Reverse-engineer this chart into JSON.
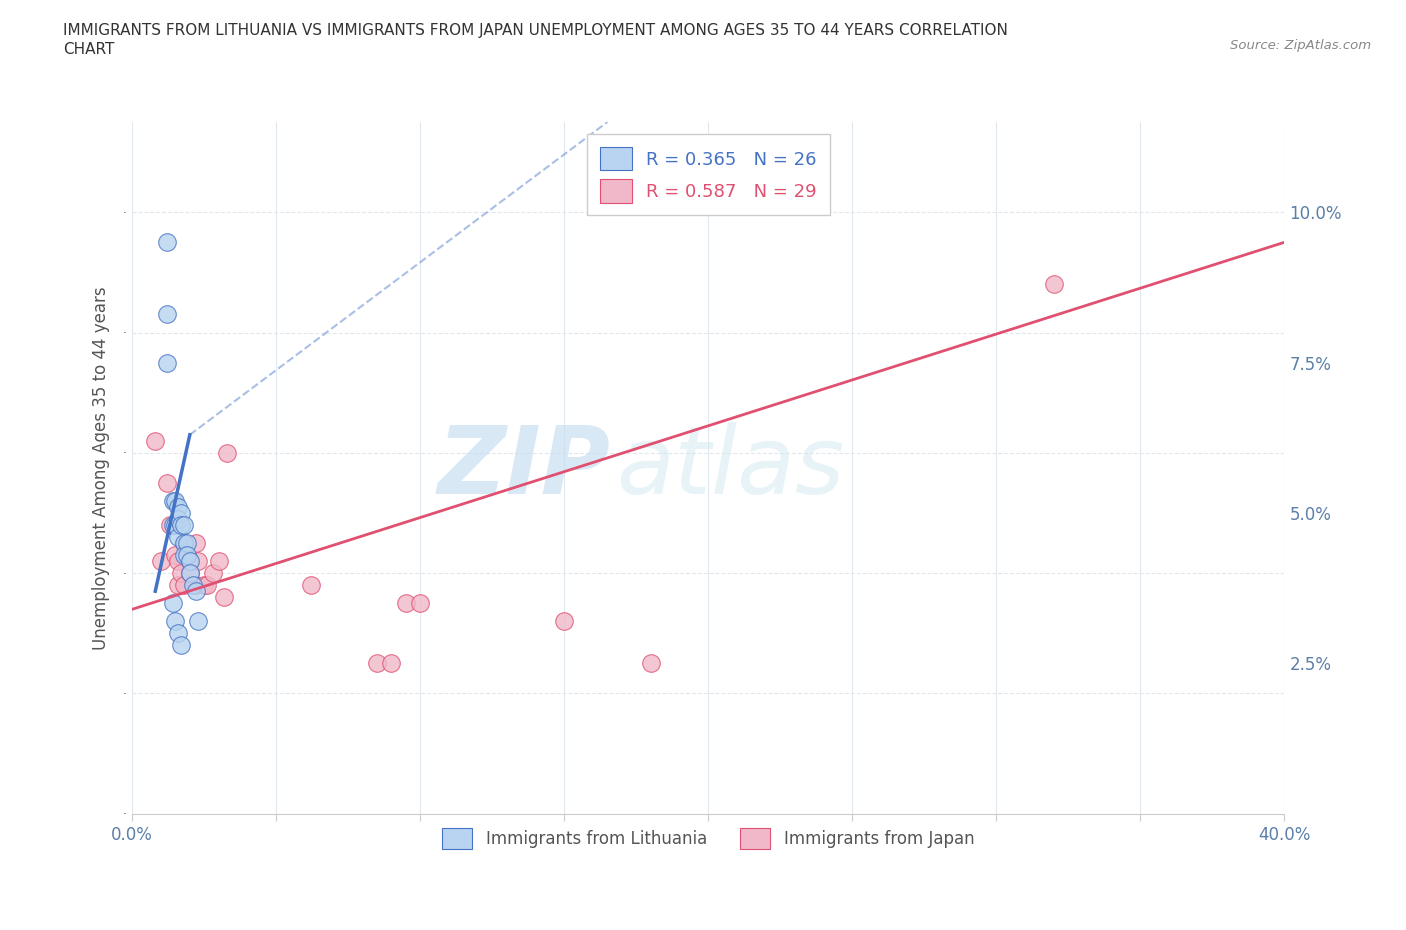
{
  "title_line1": "IMMIGRANTS FROM LITHUANIA VS IMMIGRANTS FROM JAPAN UNEMPLOYMENT AMONG AGES 35 TO 44 YEARS CORRELATION",
  "title_line2": "CHART",
  "source": "Source: ZipAtlas.com",
  "ylabel": "Unemployment Among Ages 35 to 44 years",
  "legend1_R": "R = 0.365",
  "legend1_N": "N = 26",
  "legend2_R": "R = 0.587",
  "legend2_N": "N = 29",
  "color_lithuania": "#b8d4f0",
  "color_japan": "#f0b8c8",
  "color_line_lithuania": "#4472c4",
  "color_line_japan": "#e05070",
  "color_dashed": "#80a8d8",
  "xlim": [
    0.0,
    0.4
  ],
  "ylim": [
    0.0,
    0.115
  ],
  "xticks": [
    0.0,
    0.05,
    0.1,
    0.15,
    0.2,
    0.25,
    0.3,
    0.35,
    0.4
  ],
  "yticks_right": [
    0.025,
    0.05,
    0.075,
    0.1
  ],
  "ytick_labels_right": [
    "2.5%",
    "5.0%",
    "7.5%",
    "10.0%"
  ],
  "lithuania_x": [
    0.012,
    0.012,
    0.012,
    0.014,
    0.014,
    0.015,
    0.015,
    0.016,
    0.016,
    0.016,
    0.017,
    0.017,
    0.018,
    0.018,
    0.018,
    0.019,
    0.019,
    0.02,
    0.02,
    0.021,
    0.022,
    0.023,
    0.014,
    0.015,
    0.016,
    0.017
  ],
  "lithuania_y": [
    0.095,
    0.083,
    0.075,
    0.052,
    0.048,
    0.052,
    0.048,
    0.051,
    0.049,
    0.046,
    0.05,
    0.048,
    0.048,
    0.045,
    0.043,
    0.045,
    0.043,
    0.042,
    0.04,
    0.038,
    0.037,
    0.032,
    0.035,
    0.032,
    0.03,
    0.028
  ],
  "japan_x": [
    0.008,
    0.01,
    0.012,
    0.013,
    0.015,
    0.016,
    0.016,
    0.017,
    0.018,
    0.018,
    0.02,
    0.02,
    0.022,
    0.022,
    0.023,
    0.025,
    0.026,
    0.028,
    0.03,
    0.032,
    0.033,
    0.062,
    0.085,
    0.09,
    0.095,
    0.1,
    0.15,
    0.18,
    0.32
  ],
  "japan_y": [
    0.062,
    0.042,
    0.055,
    0.048,
    0.043,
    0.038,
    0.042,
    0.04,
    0.045,
    0.038,
    0.042,
    0.04,
    0.045,
    0.038,
    0.042,
    0.038,
    0.038,
    0.04,
    0.042,
    0.036,
    0.06,
    0.038,
    0.025,
    0.025,
    0.035,
    0.035,
    0.032,
    0.025,
    0.088
  ],
  "japan_line_x0": 0.0,
  "japan_line_y0": 0.034,
  "japan_line_x1": 0.4,
  "japan_line_y1": 0.095,
  "lith_line_solid_x0": 0.008,
  "lith_line_solid_y0": 0.037,
  "lith_line_solid_x1": 0.02,
  "lith_line_solid_y1": 0.063,
  "lith_line_dash_x0": 0.02,
  "lith_line_dash_y0": 0.063,
  "lith_line_dash_x1": 0.165,
  "lith_line_dash_y1": 0.115,
  "watermark_zip": "ZIP",
  "watermark_atlas": "atlas",
  "background_color": "#ffffff",
  "grid_color": "#e0e8f0"
}
